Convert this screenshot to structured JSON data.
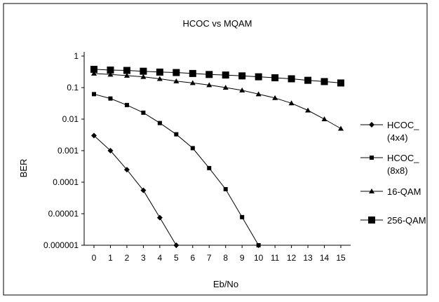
{
  "chart_data": {
    "type": "line",
    "title": "HCOC vs MQAM",
    "xlabel": "Eb/No",
    "ylabel": "BER",
    "y_scale": "log",
    "ylim": [
      1e-06,
      1
    ],
    "y_ticks": [
      "1",
      "0.1",
      "0.01",
      "0.001",
      "0.0001",
      "0.00001",
      "0.000001"
    ],
    "x": [
      0,
      1,
      2,
      3,
      4,
      5,
      6,
      7,
      8,
      9,
      10,
      11,
      12,
      13,
      14,
      15
    ],
    "x_ticks": [
      "0",
      "1",
      "2",
      "3",
      "4",
      "5",
      "6",
      "7",
      "8",
      "9",
      "10",
      "11",
      "12",
      "13",
      "14",
      "15"
    ],
    "grid": false,
    "legend_position": "right",
    "series": [
      {
        "name": "HCOC_ (4x4)",
        "legend_lines": [
          "HCOC_",
          "(4x4)"
        ],
        "marker": "diamond",
        "x": [
          0,
          1,
          2,
          3,
          4,
          5
        ],
        "values": [
          0.003,
          0.001,
          0.00025,
          5.5e-05,
          7.5e-06,
          1e-06
        ]
      },
      {
        "name": "HCOC_ (8x8)",
        "legend_lines": [
          "HCOC_",
          "(8x8)"
        ],
        "marker": "square-small",
        "x": [
          0,
          1,
          2,
          3,
          4,
          5,
          6,
          7,
          8,
          9,
          10
        ],
        "values": [
          0.062,
          0.045,
          0.028,
          0.016,
          0.0075,
          0.0033,
          0.0012,
          0.00028,
          6e-05,
          7.8e-06,
          1e-06
        ]
      },
      {
        "name": "16-QAM",
        "legend_lines": [
          "16-QAM"
        ],
        "marker": "triangle",
        "x": [
          0,
          1,
          2,
          3,
          4,
          5,
          6,
          7,
          8,
          9,
          10,
          11,
          12,
          13,
          14,
          15
        ],
        "values": [
          0.28,
          0.26,
          0.24,
          0.22,
          0.19,
          0.16,
          0.14,
          0.12,
          0.1,
          0.082,
          0.062,
          0.047,
          0.032,
          0.019,
          0.01,
          0.005
        ]
      },
      {
        "name": "256-QAM",
        "legend_lines": [
          "256-QAM"
        ],
        "marker": "square-large",
        "x": [
          0,
          1,
          2,
          3,
          4,
          5,
          6,
          7,
          8,
          9,
          10,
          11,
          12,
          13,
          14,
          15
        ],
        "values": [
          0.38,
          0.36,
          0.35,
          0.33,
          0.31,
          0.3,
          0.28,
          0.26,
          0.25,
          0.235,
          0.22,
          0.205,
          0.19,
          0.17,
          0.155,
          0.14
        ]
      }
    ]
  }
}
